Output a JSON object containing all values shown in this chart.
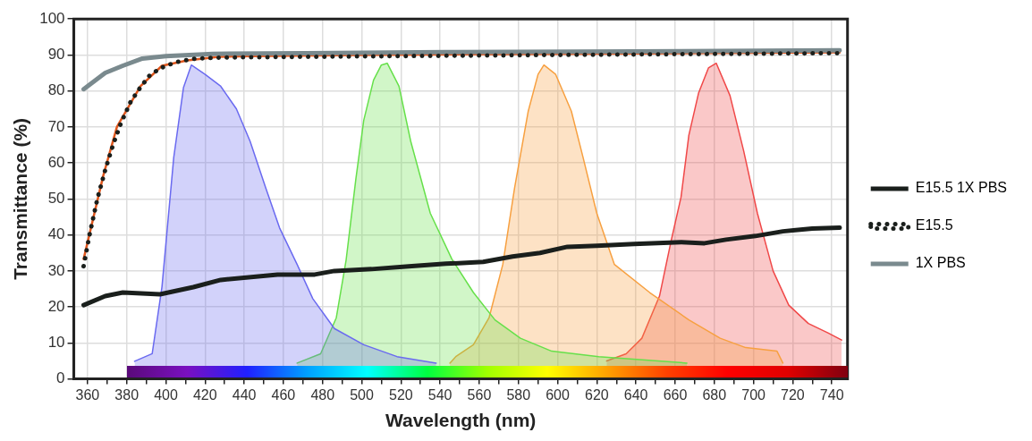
{
  "chart_data": {
    "type": "line",
    "xlabel": "Wavelength (nm)",
    "ylabel": "Transmittance (%)",
    "xlim": [
      353,
      748
    ],
    "ylim": [
      0,
      100
    ],
    "xticks": [
      360,
      {
        "value": 370,
        "label": null
      },
      380,
      {
        "value": 390,
        "label": null
      },
      400,
      {
        "value": 410,
        "label": null
      },
      420,
      {
        "value": 430,
        "label": null
      },
      440,
      {
        "value": 450,
        "label": null
      },
      460,
      {
        "value": 470,
        "label": null
      },
      480,
      {
        "value": 490,
        "label": null
      },
      500,
      {
        "value": 510,
        "label": null
      },
      520,
      {
        "value": 530,
        "label": null
      },
      540,
      {
        "value": 550,
        "label": null
      },
      560,
      {
        "value": 570,
        "label": null
      },
      580,
      {
        "value": 590,
        "label": null
      },
      600,
      {
        "value": 610,
        "label": null
      },
      620,
      {
        "value": 630,
        "label": null
      },
      640,
      {
        "value": 650,
        "label": null
      },
      660,
      {
        "value": 670,
        "label": null
      },
      680,
      {
        "value": 690,
        "label": null
      },
      700,
      {
        "value": 710,
        "label": null
      },
      720,
      {
        "value": 730,
        "label": null
      },
      740
    ],
    "yticks": [
      0,
      10,
      20,
      30,
      40,
      50,
      60,
      70,
      80,
      90,
      100
    ],
    "grid": true,
    "legend": "right",
    "series": [
      {
        "type": "area",
        "color": "#6a6af0",
        "x": [
          384,
          393,
          398,
          404,
          409,
          413,
          420,
          428,
          436,
          443,
          451,
          458,
          467,
          475,
          486,
          501,
          518,
          538
        ],
        "values": [
          4.9,
          7,
          25.6,
          61.5,
          81,
          87.2,
          84.6,
          81.3,
          75,
          66,
          53,
          42,
          31.8,
          22.3,
          14,
          9.5,
          6.2,
          4.4
        ]
      },
      {
        "type": "area",
        "color": "#66e04a",
        "x": [
          467,
          479,
          487,
          492,
          497,
          501,
          506,
          510,
          513,
          519,
          525,
          535,
          546,
          557,
          568,
          581,
          597,
          621,
          666
        ],
        "values": [
          4.4,
          7,
          17,
          33,
          55.6,
          71.8,
          83,
          87.2,
          87.7,
          81.3,
          66,
          46,
          33.3,
          24,
          16.4,
          11.3,
          7.7,
          6.2,
          4.4
        ]
      },
      {
        "type": "area",
        "color": "#f7a040",
        "x": [
          545,
          548,
          557,
          565,
          572,
          578,
          585,
          590,
          593,
          599,
          607,
          613,
          620,
          629,
          647,
          667,
          683,
          696,
          712,
          715
        ],
        "values": [
          4.4,
          6.2,
          9.5,
          17,
          31.8,
          53,
          74.4,
          84.6,
          87.2,
          84.6,
          74.4,
          61.5,
          46,
          31.8,
          24,
          16.4,
          11.3,
          8.7,
          7.7,
          4.4
        ]
      },
      {
        "type": "area",
        "color": "#f04848",
        "x": [
          625,
          635,
          643,
          652,
          658,
          663,
          667,
          672,
          677,
          681,
          688,
          695,
          702,
          710,
          718,
          728,
          738,
          745
        ],
        "values": [
          5,
          7,
          11.3,
          23,
          38.5,
          50.5,
          67.7,
          79.5,
          86.4,
          87.7,
          78.7,
          63.3,
          46,
          30,
          20.5,
          15.4,
          12.8,
          10.8
        ]
      },
      {
        "name": "E15.5 1X PBS",
        "color": "#1a1f1c",
        "line_style": "solid",
        "x": [
          358,
          369,
          378,
          397,
          414,
          428,
          457,
          476,
          486,
          505,
          524,
          543,
          562,
          577,
          591,
          605,
          620,
          639,
          663,
          675,
          686,
          701,
          715,
          730,
          744
        ],
        "values": [
          20.5,
          23,
          24,
          23.5,
          25.5,
          27.5,
          29,
          29,
          30,
          30.5,
          31.3,
          32,
          32.5,
          34,
          35,
          36.7,
          37,
          37.5,
          38,
          37.7,
          38.7,
          39.7,
          41,
          41.8,
          42
        ]
      },
      {
        "name": "E15.5",
        "color": "#1a1f1c",
        "line_style": "dotted",
        "x": [
          358,
          361,
          365,
          369,
          373,
          377,
          382,
          387,
          392,
          398,
          405,
          415,
          430,
          500,
          600,
          744
        ],
        "values": [
          31.3,
          40,
          50,
          58,
          65,
          71,
          77,
          81,
          84.5,
          86.5,
          88,
          89,
          89.3,
          89.6,
          90,
          90.5
        ]
      },
      {
        "name": "1X PBS",
        "color": "#7a8a8e",
        "line_style": "solid",
        "x": [
          358,
          369,
          378,
          388,
          400,
          424,
          471,
          543,
          639,
          744
        ],
        "values": [
          80.5,
          85,
          87,
          89,
          89.7,
          90.3,
          90.5,
          90.8,
          91,
          91.3
        ]
      },
      {
        "color": "#e0561c",
        "line_style": "solid",
        "x": [
          358,
          368,
          375,
          387,
          398,
          411,
          427,
          443,
          500,
          600,
          744
        ],
        "values": [
          33.3,
          56.4,
          70,
          81.3,
          87,
          88.5,
          89.5,
          89.7,
          90,
          90.3,
          90.7
        ]
      }
    ]
  }
}
